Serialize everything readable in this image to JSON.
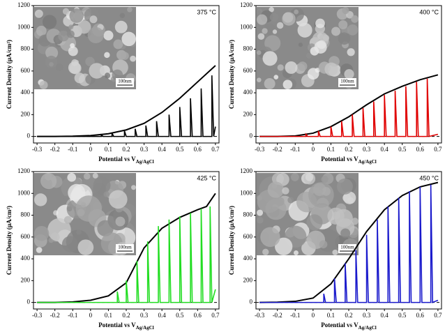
{
  "chart_data": [
    {
      "type": "line",
      "annotation": "375 °C",
      "ylabel": "Current Density (μA/cm²)",
      "xlabel": "Potential vs V",
      "xlabel_sub": "Ag/AgCl",
      "inset_scale": "100nm",
      "xlim": [
        -0.32,
        0.72
      ],
      "ylim": [
        -60,
        1200
      ],
      "xticks": [
        -0.3,
        -0.2,
        -0.1,
        0.0,
        0.1,
        0.2,
        0.3,
        0.4,
        0.5,
        0.6,
        0.7
      ],
      "yticks": [
        0,
        200,
        400,
        600,
        800,
        1000,
        1200
      ],
      "hline": 0,
      "series": [
        {
          "color": "#000000",
          "x": [
            -0.3,
            -0.2,
            -0.1,
            0.0,
            0.1,
            0.2,
            0.3,
            0.4,
            0.5,
            0.6,
            0.7
          ],
          "values": [
            0,
            0,
            2,
            8,
            25,
            60,
            120,
            220,
            350,
            500,
            650
          ]
        },
        {
          "color": "#000000",
          "x": [
            -0.3,
            0.06,
            0.06,
            0.07,
            0.12,
            0.12,
            0.13,
            0.19,
            0.19,
            0.2,
            0.25,
            0.25,
            0.26,
            0.31,
            0.31,
            0.32,
            0.37,
            0.37,
            0.38,
            0.44,
            0.44,
            0.45,
            0.5,
            0.5,
            0.51,
            0.56,
            0.56,
            0.57,
            0.62,
            0.62,
            0.63,
            0.68,
            0.68,
            0.69,
            0.7
          ],
          "values": [
            0,
            0,
            15,
            0,
            0,
            30,
            0,
            0,
            50,
            0,
            0,
            70,
            0,
            0,
            100,
            0,
            0,
            140,
            0,
            0,
            200,
            0,
            0,
            270,
            0,
            0,
            350,
            0,
            0,
            440,
            0,
            0,
            560,
            0,
            90
          ]
        }
      ]
    },
    {
      "type": "line",
      "annotation": "400 °C",
      "ylabel": "Current Density (μA/cm²)",
      "xlabel": "Potential vs V",
      "xlabel_sub": "Ag/AgCl",
      "inset_scale": "100nm",
      "xlim": [
        -0.32,
        0.72
      ],
      "ylim": [
        -60,
        1200
      ],
      "xticks": [
        -0.3,
        -0.2,
        -0.1,
        0.0,
        0.1,
        0.2,
        0.3,
        0.4,
        0.5,
        0.6,
        0.7
      ],
      "yticks": [
        0,
        200,
        400,
        600,
        800,
        1000,
        1200
      ],
      "hline": 0,
      "series": [
        {
          "color": "#000000",
          "x": [
            -0.3,
            -0.2,
            -0.1,
            0.0,
            0.1,
            0.2,
            0.3,
            0.4,
            0.5,
            0.6,
            0.7
          ],
          "values": [
            0,
            0,
            5,
            30,
            90,
            180,
            290,
            390,
            460,
            520,
            565
          ]
        },
        {
          "color": "#e00000",
          "x": [
            -0.3,
            -0.04,
            -0.04,
            -0.03,
            0.03,
            0.03,
            0.04,
            0.1,
            0.1,
            0.11,
            0.16,
            0.16,
            0.17,
            0.22,
            0.22,
            0.23,
            0.28,
            0.28,
            0.29,
            0.34,
            0.34,
            0.35,
            0.4,
            0.4,
            0.41,
            0.46,
            0.46,
            0.47,
            0.52,
            0.52,
            0.53,
            0.58,
            0.58,
            0.59,
            0.64,
            0.64,
            0.65,
            0.7
          ],
          "values": [
            0,
            0,
            20,
            0,
            0,
            50,
            0,
            0,
            90,
            0,
            0,
            140,
            0,
            0,
            200,
            0,
            0,
            260,
            0,
            0,
            320,
            0,
            0,
            380,
            0,
            0,
            420,
            0,
            0,
            460,
            0,
            0,
            500,
            0,
            0,
            530,
            0,
            20
          ]
        }
      ]
    },
    {
      "type": "line",
      "annotation": "425 °C",
      "ylabel": "Current Density (μA/cm²)",
      "xlabel": "Potential vs V",
      "xlabel_sub": "Ag/AgCl",
      "inset_scale": "100nm",
      "xlim": [
        -0.32,
        0.72
      ],
      "ylim": [
        -60,
        1200
      ],
      "xticks": [
        -0.3,
        -0.2,
        -0.1,
        0.0,
        0.1,
        0.2,
        0.3,
        0.4,
        0.5,
        0.6,
        0.7
      ],
      "yticks": [
        0,
        200,
        400,
        600,
        800,
        1000,
        1200
      ],
      "hline": 0,
      "series": [
        {
          "color": "#000000",
          "x": [
            -0.3,
            -0.2,
            -0.1,
            0.0,
            0.1,
            0.2,
            0.3,
            0.4,
            0.5,
            0.6,
            0.65,
            0.7
          ],
          "values": [
            0,
            0,
            5,
            20,
            60,
            180,
            500,
            680,
            780,
            850,
            880,
            1000
          ]
        },
        {
          "color": "#22dd22",
          "x": [
            -0.3,
            0.15,
            0.15,
            0.16,
            0.2,
            0.2,
            0.21,
            0.26,
            0.26,
            0.27,
            0.32,
            0.32,
            0.33,
            0.38,
            0.38,
            0.39,
            0.44,
            0.44,
            0.45,
            0.5,
            0.5,
            0.51,
            0.56,
            0.56,
            0.57,
            0.62,
            0.62,
            0.63,
            0.67,
            0.67,
            0.68,
            0.7
          ],
          "values": [
            0,
            0,
            100,
            0,
            0,
            200,
            0,
            0,
            380,
            0,
            0,
            560,
            0,
            0,
            700,
            0,
            0,
            760,
            0,
            0,
            790,
            0,
            0,
            820,
            0,
            0,
            860,
            0,
            0,
            880,
            0,
            120
          ]
        }
      ]
    },
    {
      "type": "line",
      "annotation": "450 °C",
      "ylabel": "Current Density (μA/cm²)",
      "xlabel": "Potential vs V",
      "xlabel_sub": "Ag/AgCl",
      "inset_scale": "100nm",
      "xlim": [
        -0.32,
        0.72
      ],
      "ylim": [
        -60,
        1200
      ],
      "xticks": [
        -0.3,
        -0.2,
        -0.1,
        0.0,
        0.1,
        0.2,
        0.3,
        0.4,
        0.5,
        0.6,
        0.7
      ],
      "yticks": [
        0,
        200,
        400,
        600,
        800,
        1000,
        1200
      ],
      "hline": 0,
      "series": [
        {
          "color": "#000000",
          "x": [
            -0.3,
            -0.2,
            -0.1,
            0.0,
            0.1,
            0.2,
            0.3,
            0.4,
            0.5,
            0.6,
            0.7
          ],
          "values": [
            0,
            2,
            10,
            40,
            170,
            400,
            650,
            850,
            980,
            1060,
            1100
          ]
        },
        {
          "color": "#1a1acc",
          "x": [
            -0.3,
            0.06,
            0.06,
            0.07,
            0.12,
            0.12,
            0.13,
            0.18,
            0.18,
            0.19,
            0.24,
            0.24,
            0.25,
            0.3,
            0.3,
            0.31,
            0.36,
            0.36,
            0.37,
            0.42,
            0.42,
            0.43,
            0.48,
            0.48,
            0.49,
            0.54,
            0.54,
            0.55,
            0.6,
            0.6,
            0.61,
            0.66,
            0.66,
            0.67,
            0.7
          ],
          "values": [
            0,
            0,
            80,
            0,
            0,
            220,
            0,
            0,
            360,
            0,
            0,
            480,
            0,
            0,
            620,
            0,
            0,
            760,
            0,
            0,
            880,
            0,
            0,
            960,
            0,
            0,
            1020,
            0,
            0,
            1060,
            0,
            0,
            1080,
            0,
            20
          ]
        }
      ]
    }
  ]
}
